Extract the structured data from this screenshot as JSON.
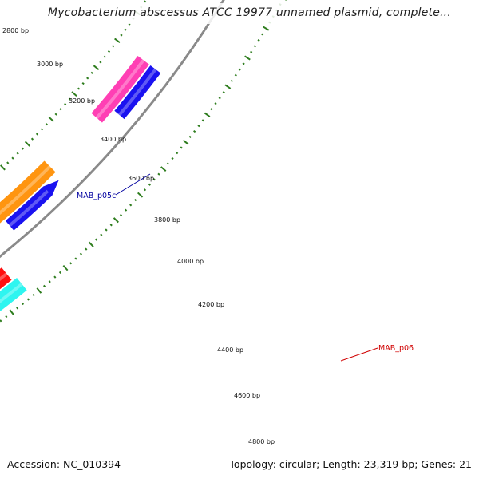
{
  "title": "Mycobacterium abscessus ATCC 19977 unnamed plasmid, complete...",
  "footer": {
    "accession": "Accession: NC_010394",
    "summary": "Topology: circular; Length: 23,319 bp; Genes: 21"
  },
  "backbone_color": "#8a8a8a",
  "tick_color": "#2e7d1e",
  "scale_labels": [
    "2800 bp",
    "3000 bp",
    "3200 bp",
    "3400 bp",
    "3600 bp",
    "3800 bp",
    "4000 bp",
    "4200 bp",
    "4400 bp",
    "4600 bp",
    "4800 bp"
  ],
  "genes": [
    {
      "label": "",
      "color": "#ff3fb4",
      "strand": "reverse"
    },
    {
      "label": "",
      "color": "#1a12f0",
      "strand": "reverse"
    },
    {
      "label": "MAB_p05c",
      "color": "#1a12f0",
      "label_color": "#0000a0",
      "strand": "reverse"
    },
    {
      "label": "",
      "color": "#ff9510",
      "strand": "reverse"
    },
    {
      "label": "MAB_p06",
      "color": "#ff1010",
      "label_color": "#d00000",
      "strand": "forward"
    },
    {
      "label": "",
      "color": "#2ef5f0",
      "strand": "forward"
    }
  ]
}
